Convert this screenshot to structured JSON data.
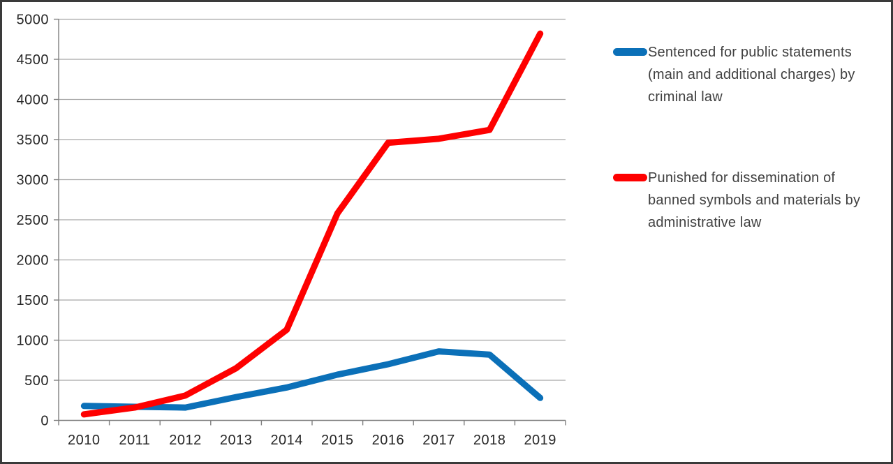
{
  "frame": {
    "background_color": "#ffffff",
    "border_color": "#3a3a3a"
  },
  "chart_data": {
    "type": "line",
    "categories": [
      "2010",
      "2011",
      "2012",
      "2013",
      "2014",
      "2015",
      "2016",
      "2017",
      "2018",
      "2019"
    ],
    "series": [
      {
        "name": "Sentenced for public statements (main and additional charges) by criminal law",
        "color": "#0b70b8",
        "values": [
          180,
          170,
          160,
          290,
          410,
          570,
          700,
          860,
          820,
          280
        ]
      },
      {
        "name": "Punished for dissemination of banned symbols and materials by administrative law",
        "color": "#fe0000",
        "values": [
          75,
          160,
          310,
          650,
          1130,
          2580,
          3460,
          3510,
          3620,
          4820
        ]
      }
    ],
    "title": "",
    "xlabel": "",
    "ylabel": "",
    "ylim": [
      0,
      5000
    ],
    "y_tick_step": 500,
    "y_ticks": [
      "0",
      "500",
      "1000",
      "1500",
      "2000",
      "2500",
      "3000",
      "3500",
      "4000",
      "4500",
      "5000"
    ],
    "grid": "horizontal",
    "legend_position": "right",
    "line_width": 9,
    "axis_color": "#7f7f7f",
    "grid_color": "#a6a6a6",
    "tick_label_color": "#262626"
  },
  "legend": {
    "items": [
      {
        "color": "#0b70b8",
        "lines": [
          "Sentenced for public statements",
          "(main and additional charges) by",
          "criminal law"
        ]
      },
      {
        "color": "#fe0000",
        "lines": [
          "Punished for dissemination of",
          "banned symbols and materials by",
          "administrative law"
        ]
      }
    ]
  }
}
